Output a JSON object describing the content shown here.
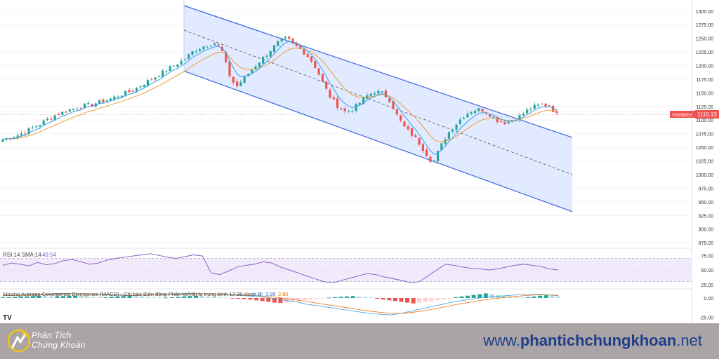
{
  "chart_data": [
    {
      "type": "candlestick",
      "symbol": "VNINDEX",
      "last_price": "1110.13",
      "ylim": [
        870,
        1310
      ],
      "y_ticks": [
        "1300.00",
        "1275.00",
        "1250.00",
        "1225.00",
        "1200.00",
        "1175.00",
        "1150.00",
        "1125.00",
        "1100.00",
        "1075.00",
        "1050.00",
        "1025.00",
        "1000.00",
        "975.00",
        "950.00",
        "925.00",
        "900.00",
        "875.00"
      ],
      "close_path": [
        1065,
        1068,
        1072,
        1078,
        1085,
        1092,
        1100,
        1108,
        1113,
        1118,
        1122,
        1126,
        1128,
        1132,
        1136,
        1140,
        1146,
        1150,
        1156,
        1164,
        1172,
        1180,
        1188,
        1196,
        1204,
        1212,
        1225,
        1232,
        1238,
        1242,
        1230,
        1185,
        1160,
        1175,
        1190,
        1205,
        1218,
        1232,
        1245,
        1250,
        1238,
        1228,
        1215,
        1195,
        1165,
        1140,
        1125,
        1115,
        1120,
        1132,
        1145,
        1152,
        1150,
        1138,
        1110,
        1088,
        1075,
        1060,
        1040,
        1020,
        1050,
        1075,
        1090,
        1105,
        1115,
        1120,
        1118,
        1108,
        1098,
        1095,
        1100,
        1108,
        1118,
        1125,
        1128,
        1126,
        1110
      ],
      "channel": {
        "upper": {
          "x0": 0.0,
          "y0": 1310,
          "x1": 1.0,
          "y1": 1068
        },
        "middle": {
          "x0": 0.0,
          "y0": 1265,
          "x1": 1.0,
          "y1": 1000
        },
        "lower": {
          "x0": 0.0,
          "y0": 1190,
          "x1": 1.0,
          "y1": 932
        }
      }
    },
    {
      "type": "line",
      "title": "RSI 14 SMA 14",
      "value": "49.54",
      "ylim": [
        20,
        85
      ],
      "y_ticks": [
        "75.00",
        "50.00",
        "25.00"
      ],
      "bands": [
        70,
        30
      ],
      "values": [
        58,
        62,
        60,
        57,
        63,
        59,
        61,
        66,
        68,
        64,
        60,
        62,
        67,
        70,
        72,
        74,
        76,
        78,
        75,
        72,
        70,
        73,
        76,
        74,
        45,
        42,
        48,
        55,
        58,
        60,
        64,
        62,
        55,
        50,
        45,
        40,
        35,
        30,
        28,
        32,
        36,
        40,
        44,
        42,
        38,
        35,
        32,
        28,
        30,
        40,
        50,
        60,
        58,
        55,
        53,
        52,
        50,
        52,
        55,
        58,
        60,
        58,
        56,
        52,
        50
      ]
    },
    {
      "type": "bar",
      "title": "Moving Average Covergence Divergence (MACD) - Chỉ báo Biến động Phân kỳ/Hội tụ trung bình 12 26 close 9",
      "values_label": [
        "1.15",
        "3.95",
        "2.80"
      ],
      "ylim": [
        -30,
        10
      ],
      "y_ticks": [
        "0.00",
        "-25.00"
      ],
      "histogram": [
        1,
        1,
        1.5,
        2,
        2,
        2.5,
        3,
        2.5,
        2,
        2,
        2.5,
        3,
        3,
        2.5,
        2,
        1.5,
        1,
        1,
        1.5,
        2,
        2.5,
        3,
        2.5,
        2,
        1.5,
        1,
        0.5,
        0.5,
        1,
        1.5,
        2,
        2.5,
        3,
        2.5,
        2,
        1.5,
        1,
        0.5,
        -0.5,
        -1,
        -1.5,
        -2,
        -3,
        -4,
        -5,
        -6,
        -6.5,
        -6,
        -5,
        -4,
        -3,
        -2,
        -1,
        -0.5,
        0.5,
        1,
        1.5,
        2,
        2.5,
        2,
        1.5,
        1,
        -1,
        -2,
        -3,
        -4,
        -5,
        -6,
        -7,
        -6,
        -5,
        -4,
        -3,
        -2,
        -1,
        1,
        2,
        3,
        4,
        5,
        6,
        5,
        4,
        3,
        2,
        1,
        0.5,
        1,
        2,
        3,
        3.5,
        3,
        2
      ],
      "macd": [
        3,
        3.5,
        4,
        4.5,
        5,
        5.5,
        6,
        5.5,
        5,
        4.5,
        4,
        3.5,
        3,
        3.5,
        4,
        4.5,
        5,
        5.5,
        6,
        5.5,
        5,
        4.5,
        4,
        3,
        2,
        1,
        -1,
        -3,
        -5,
        -8,
        -10,
        -12,
        -14,
        -16,
        -18,
        -20,
        -21,
        -22,
        -20,
        -17,
        -14,
        -11,
        -8,
        -5,
        -3,
        -1,
        1,
        2,
        3,
        4,
        5,
        5,
        4,
        3
      ]
    }
  ],
  "footer": {
    "brand_line1": "Phân Tích",
    "brand_line2": "Chứng Khoán",
    "url_prefix": "www.",
    "url_bold": "phantichchungkhoan",
    "url_suffix": ".net"
  },
  "tv_logo": "TV",
  "colors": {
    "up": "#26a69a",
    "down": "#ef5350",
    "channel_fill": "#dde6ff",
    "channel_line": "#3b66e0",
    "ema_fast": "#3a9ee8",
    "ema_slow": "#e8a035",
    "rsi_line": "#7e57c2",
    "rsi_band": "#f0eafa",
    "price_label": "#ef5350",
    "footer_bg": "#aaa4a6",
    "url": "#1d3f8a",
    "brand_accent": "#f0c419"
  }
}
